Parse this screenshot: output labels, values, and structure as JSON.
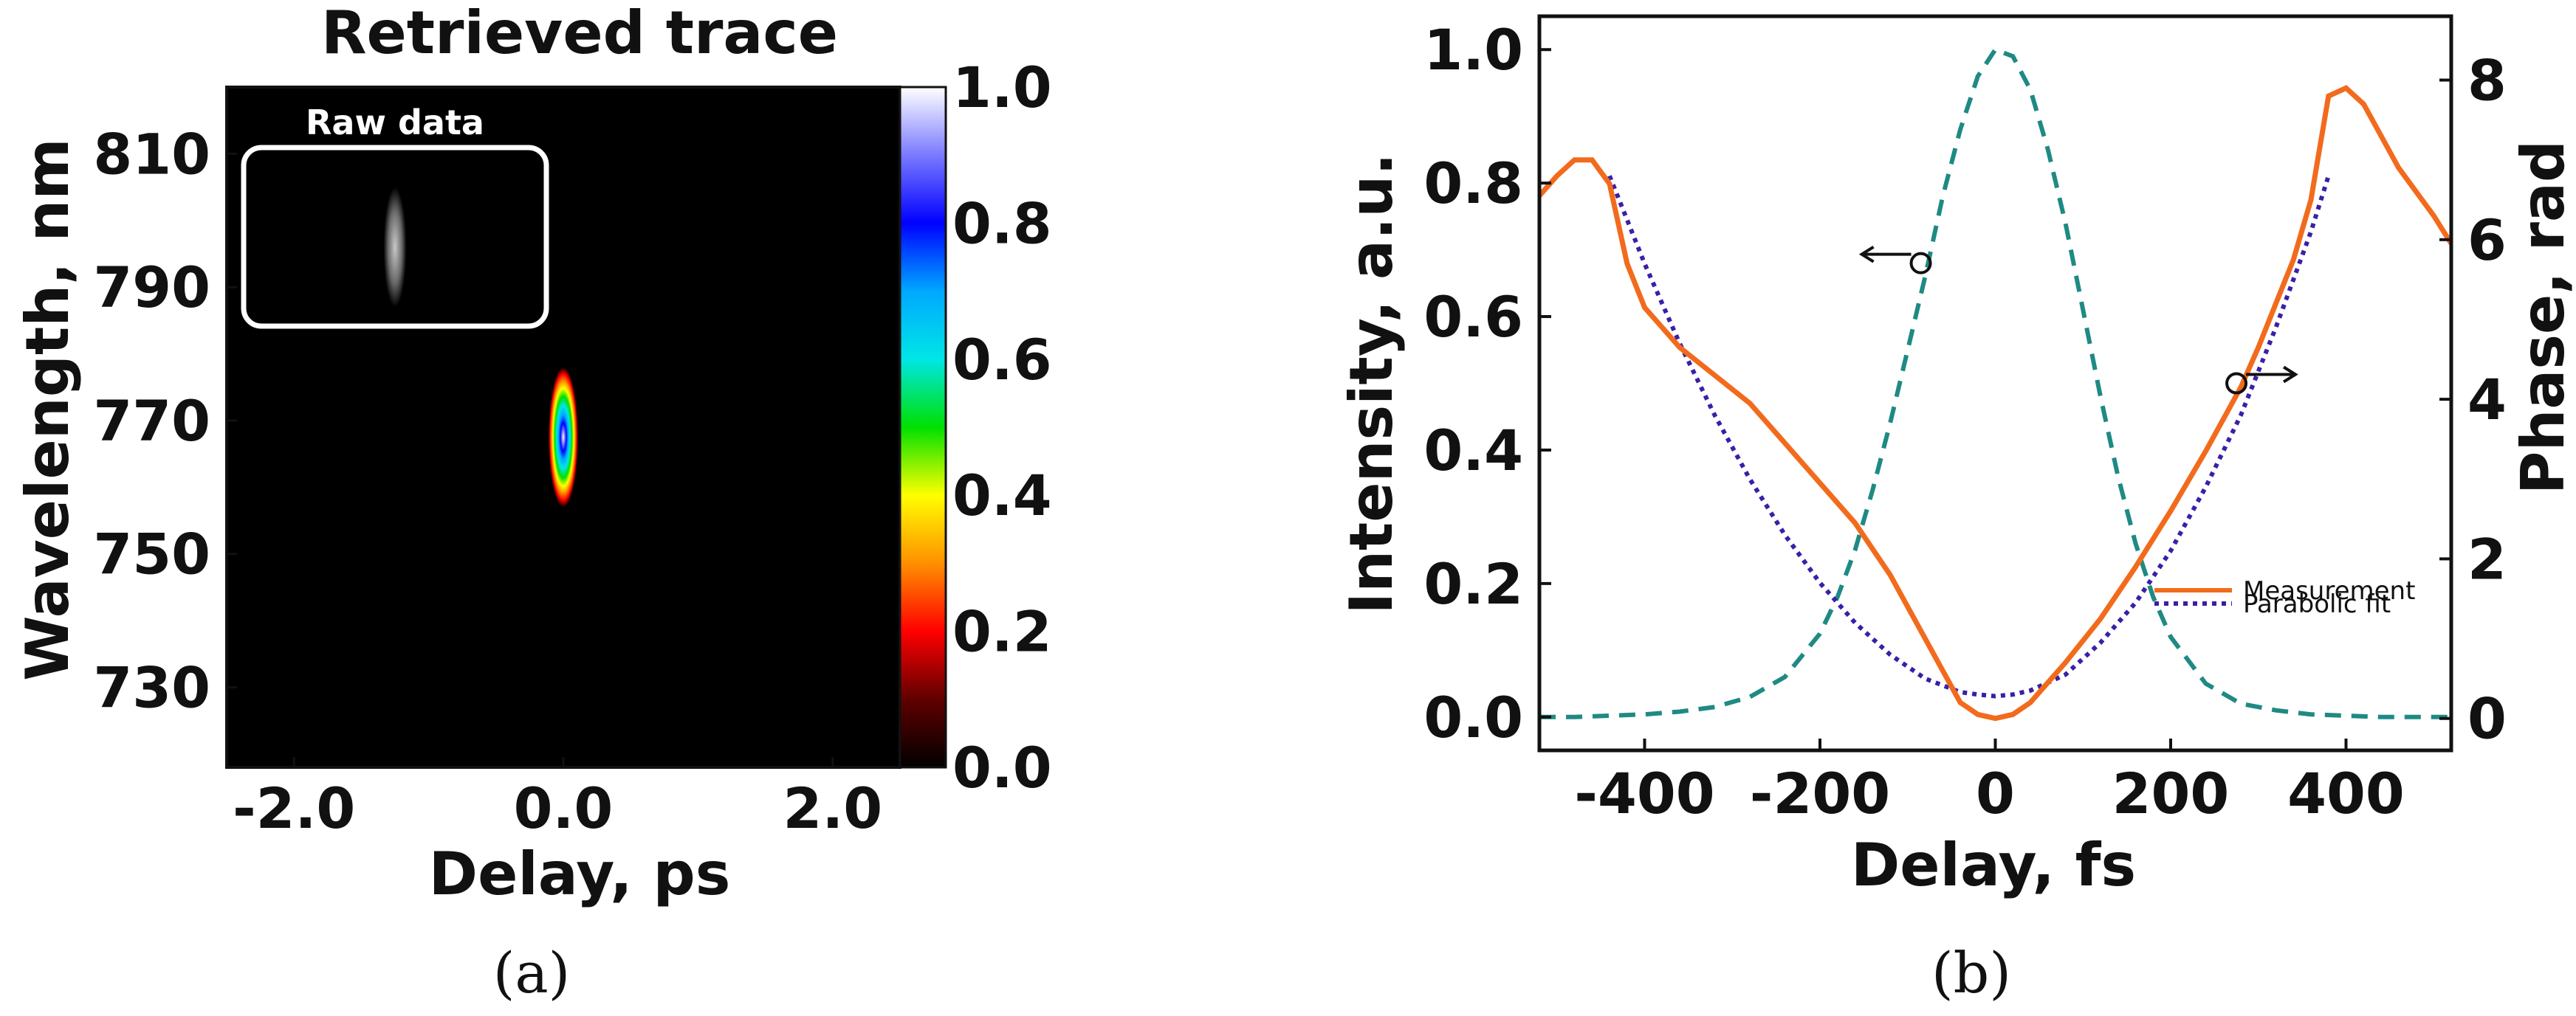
{
  "panel_labels": [
    "(a)",
    "(b)"
  ],
  "colors": {
    "measurement": "#F26B1D",
    "parabolic_fit": "#3A1FA8",
    "intensity": "#1E8A83",
    "frame": "#111111",
    "trace_bg": "#000000"
  },
  "chart_data": [
    {
      "type": "heatmap",
      "title": "Retrieved trace",
      "xlabel": "Delay, ps",
      "ylabel": "Wavelength, nm",
      "xlim": [
        -2.5,
        2.5
      ],
      "ylim": [
        718,
        820
      ],
      "x_ticks": [
        -2.0,
        0.0,
        2.0
      ],
      "x_tick_labels": [
        "-2.0",
        "0.0",
        "2.0"
      ],
      "y_ticks": [
        730,
        750,
        770,
        790,
        810
      ],
      "y_tick_labels": [
        "730",
        "750",
        "770",
        "790",
        "810"
      ],
      "colorbar": {
        "range": [
          0.0,
          1.0
        ],
        "ticks": [
          0.0,
          0.2,
          0.4,
          0.6,
          0.8,
          1.0
        ],
        "tick_labels": [
          "0.0",
          "0.2",
          "0.4",
          "0.6",
          "0.8",
          "1.0"
        ]
      },
      "spot": {
        "delay_center": 0.0,
        "wavelength_center": 767.5,
        "delay_halfwidth": 0.11,
        "wavelength_halfwidth": 10.5,
        "peak": 1.0
      },
      "inset": {
        "label": "Raw data",
        "spot_delay": -1.25,
        "spot_wavelength": 796
      }
    },
    {
      "type": "line",
      "xlabel": "Delay, fs",
      "ylabel": "Intensity, a.u.",
      "y2label": "Phase, rad",
      "xlim": [
        -520,
        520
      ],
      "ylim": [
        -0.05,
        1.05
      ],
      "y2lim": [
        -0.4,
        8.8
      ],
      "x_ticks": [
        -400,
        -200,
        0,
        200,
        400
      ],
      "x_tick_labels": [
        "-400",
        "-200",
        "0",
        "200",
        "400"
      ],
      "y_ticks": [
        0.0,
        0.2,
        0.4,
        0.6,
        0.8,
        1.0
      ],
      "y_tick_labels": [
        "0.0",
        "0.2",
        "0.4",
        "0.6",
        "0.8",
        "1.0"
      ],
      "y2_ticks": [
        0,
        2,
        4,
        6,
        8
      ],
      "y2_tick_labels": [
        "0",
        "2",
        "4",
        "6",
        "8"
      ],
      "series": [
        {
          "name": "Intensity",
          "axis": "left",
          "style": "dashed",
          "x": [
            -520,
            -480,
            -440,
            -400,
            -360,
            -320,
            -280,
            -240,
            -200,
            -180,
            -160,
            -140,
            -120,
            -100,
            -80,
            -60,
            -40,
            -20,
            0,
            20,
            40,
            60,
            80,
            100,
            120,
            140,
            160,
            180,
            200,
            240,
            280,
            320,
            360,
            400,
            440,
            480,
            520
          ],
          "y": [
            0.0,
            0.0,
            0.002,
            0.004,
            0.008,
            0.015,
            0.03,
            0.06,
            0.125,
            0.18,
            0.25,
            0.34,
            0.44,
            0.55,
            0.66,
            0.78,
            0.88,
            0.96,
            1.0,
            0.99,
            0.94,
            0.85,
            0.74,
            0.61,
            0.48,
            0.36,
            0.26,
            0.18,
            0.12,
            0.05,
            0.02,
            0.01,
            0.004,
            0.002,
            0.0,
            0.0,
            0.0
          ]
        },
        {
          "name": "Measurement",
          "axis": "right",
          "style": "solid",
          "x": [
            -520,
            -500,
            -480,
            -460,
            -440,
            -420,
            -400,
            -380,
            -360,
            -320,
            -280,
            -240,
            -200,
            -160,
            -120,
            -80,
            -40,
            -20,
            0,
            20,
            40,
            80,
            120,
            160,
            200,
            240,
            280,
            300,
            320,
            340,
            360,
            380,
            400,
            420,
            460,
            500,
            520
          ],
          "y": [
            6.55,
            6.8,
            7.0,
            7.0,
            6.7,
            5.7,
            5.15,
            4.9,
            4.65,
            4.3,
            3.95,
            3.45,
            2.95,
            2.45,
            1.8,
            1.0,
            0.2,
            0.05,
            0.0,
            0.05,
            0.2,
            0.7,
            1.25,
            1.9,
            2.6,
            3.35,
            4.15,
            4.65,
            5.2,
            5.75,
            6.5,
            7.8,
            7.9,
            7.7,
            6.9,
            6.3,
            5.95
          ]
        },
        {
          "name": "Parabolic fit",
          "axis": "right",
          "style": "dotted",
          "x": [
            -440,
            -400,
            -360,
            -320,
            -280,
            -240,
            -200,
            -160,
            -120,
            -80,
            -40,
            -20,
            0,
            20,
            40,
            80,
            120,
            160,
            200,
            240,
            280,
            320,
            360,
            380
          ],
          "y": [
            6.8,
            5.7,
            4.7,
            3.8,
            3.0,
            2.3,
            1.7,
            1.2,
            0.8,
            0.5,
            0.33,
            0.3,
            0.28,
            0.3,
            0.35,
            0.55,
            0.95,
            1.45,
            2.1,
            2.9,
            3.8,
            4.9,
            6.1,
            6.8
          ]
        }
      ],
      "annotations": [
        {
          "target": "Intensity",
          "direction": "left",
          "x": -85,
          "y": 0.68
        },
        {
          "target": "Measurement",
          "direction": "right",
          "x": 275,
          "y": 4.2
        }
      ],
      "legend": {
        "position": "bottom-right",
        "entries": [
          "Measurement",
          "Parabolic fit"
        ]
      }
    }
  ]
}
